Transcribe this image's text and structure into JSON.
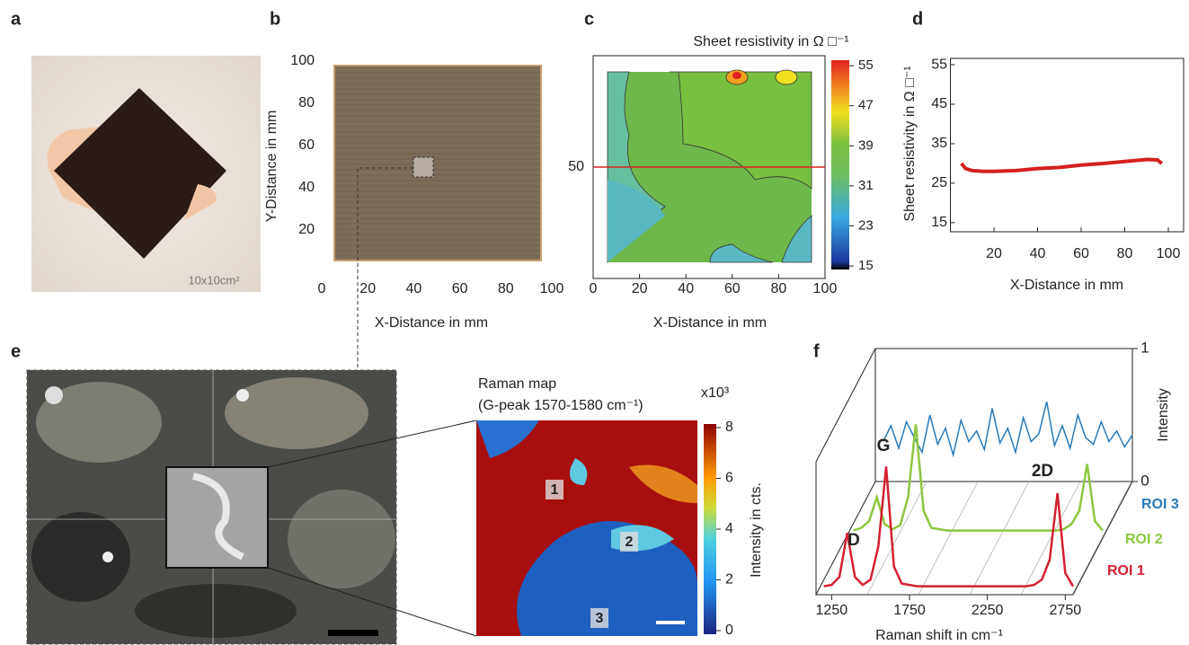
{
  "panel_a": {
    "label": "a",
    "caption": "10x10cm²"
  },
  "chart_data": [
    {
      "type": "image",
      "panel": "b",
      "xlabel": "X-Distance in mm",
      "ylabel": "Y-Distance in mm",
      "xlim": [
        0,
        100
      ],
      "ylim": [
        0,
        100
      ],
      "xticks": [
        0,
        20,
        40,
        60,
        80,
        100
      ],
      "yticks": [
        20,
        40,
        60,
        80,
        100
      ]
    },
    {
      "type": "contour",
      "panel": "c",
      "title": "Sheet resistivity in Ω □⁻¹",
      "xlabel": "X-Distance in mm",
      "xlim": [
        0,
        100
      ],
      "ylim": [
        0,
        100
      ],
      "xticks": [
        0,
        20,
        40,
        60,
        80,
        100
      ],
      "yticks": [
        50
      ],
      "marker_color": "#e02020",
      "colorbar": {
        "lim": [
          14.3,
          56.1
        ],
        "ticks": [
          15,
          23,
          31,
          39,
          47,
          55
        ]
      }
    },
    {
      "type": "line",
      "panel": "d",
      "xlabel": "X-Distance in mm",
      "ylabel": "Sheet resistivity in Ω □⁻¹",
      "xlim": [
        0,
        107
      ],
      "ylim": [
        12.7,
        56.6
      ],
      "xticks": [
        20,
        40,
        60,
        80,
        100
      ],
      "yticks": [
        15,
        25,
        35,
        45,
        55
      ],
      "x": [
        5,
        7,
        10,
        15,
        20,
        30,
        40,
        50,
        60,
        70,
        80,
        90,
        95,
        97
      ],
      "series": [
        {
          "color": "#d42020",
          "values": [
            30,
            28.7,
            28.2,
            28,
            28,
            28.2,
            28.7,
            29,
            29.6,
            30,
            30.5,
            31,
            30.9,
            30
          ]
        }
      ]
    },
    {
      "type": "heatmap",
      "panel": "e",
      "title": "Raman map",
      "subtitle": "(G-peak 1570-1580 cm⁻¹)",
      "scale_label": "x10³",
      "colorbar_label": "Intensity in cts.",
      "colorbar": {
        "lim": [
          0,
          8
        ],
        "ticks": [
          0,
          2,
          4,
          6,
          8
        ]
      },
      "regions": [
        "1",
        "2",
        "3"
      ]
    },
    {
      "type": "line3d",
      "panel": "f",
      "xlabel": "Raman shift in cm⁻¹",
      "zlabel": "Intensity",
      "xlim": [
        1150,
        2800
      ],
      "xticks": [
        1250,
        1750,
        2250,
        2750
      ],
      "zlim": [
        0,
        1
      ],
      "zticks": [
        0,
        1
      ],
      "peaks": [
        "D",
        "G",
        "2D"
      ],
      "x": [
        1200,
        1250,
        1300,
        1350,
        1400,
        1450,
        1500,
        1550,
        1600,
        1650,
        1700,
        1750,
        1800,
        1850,
        1900,
        1950,
        2000,
        2050,
        2100,
        2150,
        2200,
        2250,
        2300,
        2350,
        2400,
        2450,
        2500,
        2550,
        2600,
        2650,
        2700,
        2750,
        2800
      ],
      "series": [
        {
          "name": "ROI 1",
          "color": "#d42030",
          "values": [
            0.05,
            0.06,
            0.12,
            0.45,
            0.12,
            0.06,
            0.1,
            0.35,
            0.95,
            0.2,
            0.07,
            0.06,
            0.05,
            0.05,
            0.05,
            0.05,
            0.05,
            0.05,
            0.05,
            0.05,
            0.05,
            0.05,
            0.05,
            0.05,
            0.05,
            0.05,
            0.05,
            0.06,
            0.1,
            0.25,
            0.75,
            0.15,
            0.05
          ]
        },
        {
          "name": "ROI 2",
          "color": "#8cc63f",
          "values": [
            0.05,
            0.07,
            0.12,
            0.3,
            0.1,
            0.06,
            0.09,
            0.3,
            0.85,
            0.2,
            0.07,
            0.06,
            0.05,
            0.05,
            0.05,
            0.05,
            0.05,
            0.05,
            0.05,
            0.05,
            0.05,
            0.05,
            0.05,
            0.05,
            0.05,
            0.05,
            0.05,
            0.06,
            0.1,
            0.2,
            0.55,
            0.12,
            0.05
          ]
        },
        {
          "name": "ROI 3",
          "color": "#2a7ab8",
          "values": [
            0.3,
            0.42,
            0.25,
            0.45,
            0.33,
            0.22,
            0.5,
            0.28,
            0.4,
            0.2,
            0.46,
            0.3,
            0.38,
            0.24,
            0.55,
            0.29,
            0.4,
            0.22,
            0.48,
            0.3,
            0.36,
            0.6,
            0.27,
            0.42,
            0.25,
            0.5,
            0.33,
            0.28,
            0.45,
            0.3,
            0.38,
            0.26,
            0.35
          ]
        }
      ]
    }
  ]
}
